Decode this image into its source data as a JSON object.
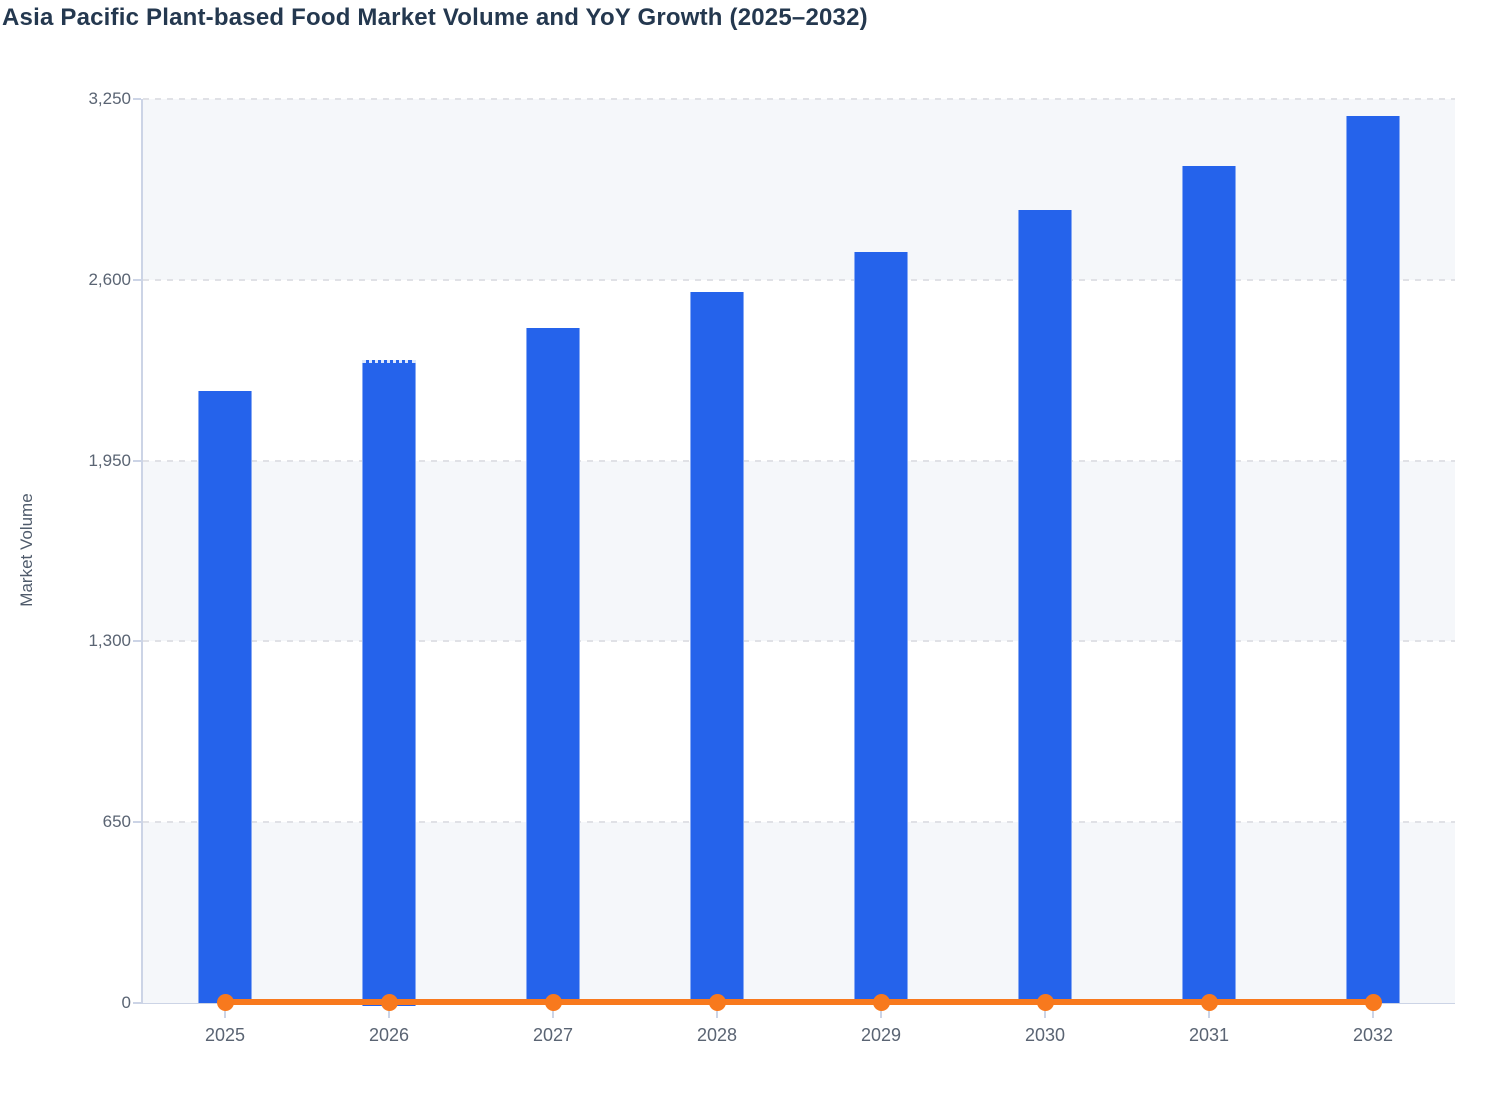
{
  "title": "Asia Pacific Plant-based Food Market Volume and YoY Growth (2025–2032)",
  "chart_data": {
    "type": "bar",
    "title": "Asia Pacific Plant-based Food Market Volume and YoY Growth (2025–2032)",
    "categories": [
      "2025",
      "2026",
      "2027",
      "2028",
      "2029",
      "2030",
      "2031",
      "2032"
    ],
    "series": [
      {
        "name": "Market Volume",
        "type": "bar",
        "color": "#2563eb",
        "values": [
          2200,
          2310,
          2425,
          2555,
          2700,
          2850,
          3010,
          3190
        ]
      },
      {
        "name": "YoY Growth",
        "type": "line",
        "color": "#f8791d",
        "marker": "circle",
        "values_as_rendered_on_volume_axis": [
          0,
          0,
          0,
          0,
          0,
          0,
          0,
          0
        ]
      }
    ],
    "xlabel": "",
    "ylabel": "Market Volume",
    "ylim": [
      0,
      3250
    ],
    "y_ticks": [
      0,
      650,
      1300,
      1950,
      2600,
      3250
    ],
    "y_tick_labels": [
      "0",
      "650",
      "1,300",
      "1,950",
      "2,600",
      "3,250"
    ],
    "grid": "horizontal dashed gridlines",
    "plot_bands": "alternating horizontal bands between gridlines",
    "legend": "none"
  },
  "colors": {
    "bar": "#2563eb",
    "line": "#f8791d",
    "title_text": "#24384f",
    "tick_text": "#5a6473",
    "axis_title_text": "#4f5b6b",
    "gridline": "#e0e1e6",
    "band": "#f5f7fa",
    "axis_line": "#ccd4e6",
    "background": "#ffffff"
  }
}
